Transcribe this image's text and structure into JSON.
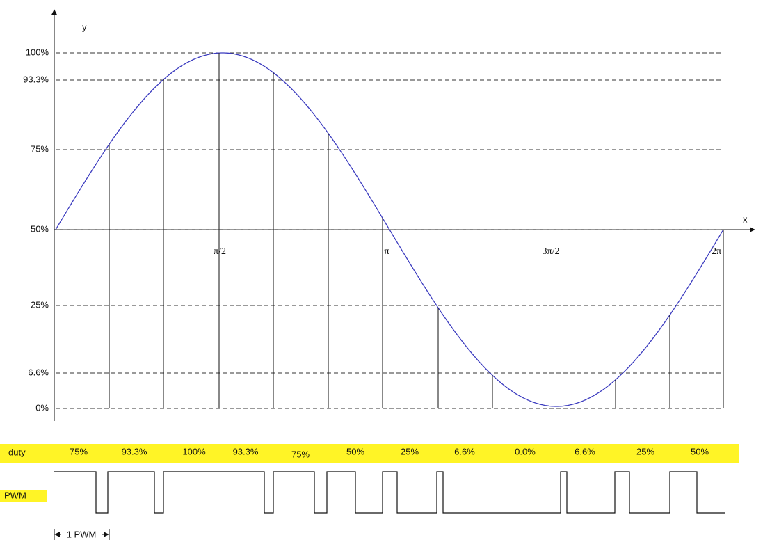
{
  "axes": {
    "y_label": "y",
    "x_label": "x"
  },
  "y_levels": [
    "100%",
    "93.3%",
    "75%",
    "50%",
    "25%",
    "6.6%",
    "0%"
  ],
  "x_labels": [
    "π/2",
    "π",
    "3π/2",
    "2π"
  ],
  "duty": {
    "label": "duty",
    "values": [
      "75%",
      "93.3%",
      "100%",
      "93.3%",
      "75%",
      "50%",
      "25%",
      "6.6%",
      "0.0%",
      "6.6%",
      "25%",
      "50%"
    ]
  },
  "pwm": {
    "label": "PWM",
    "period_label": "1 PWM"
  }
}
